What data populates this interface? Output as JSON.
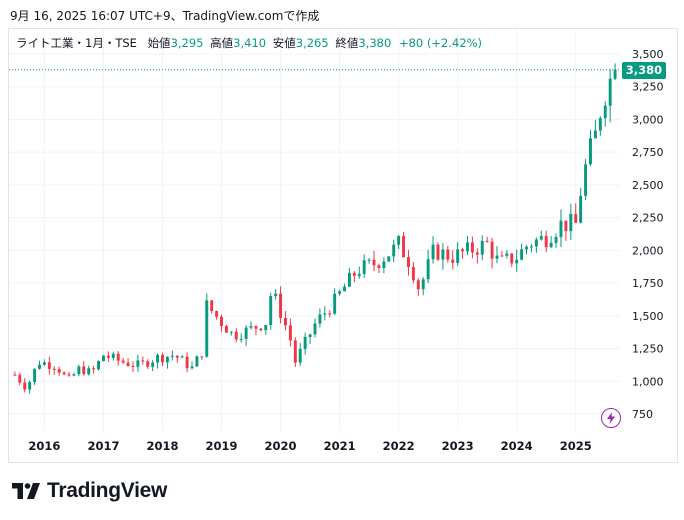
{
  "header": {
    "date_text": "9月 16, 2025 16:07 UTC+9、TradingView.comで作成"
  },
  "legend": {
    "symbol": "ライト工業・1月・TSE",
    "open_label": "始値",
    "open_value": "3,295",
    "high_label": "高値",
    "high_value": "3,410",
    "low_label": "安値",
    "low_value": "3,265",
    "close_label": "終値",
    "close_value": "3,380",
    "change": "+80 (+2.42%)"
  },
  "last_price_label": "3,380",
  "brand": {
    "name": "TradingView"
  },
  "colors": {
    "up": "#089981",
    "down": "#f23645",
    "grid": "#f0f3fa",
    "accent": "#9c27b0"
  },
  "icons": {
    "logo": "tradingview-logo-icon",
    "flash": "lightning-icon"
  },
  "chart_data": {
    "type": "candlestick",
    "title": "ライト工業・1月・TSE",
    "interval": "1M",
    "ylim": [
      600,
      3550
    ],
    "y_ticks": [
      750,
      1000,
      1250,
      1500,
      1750,
      2000,
      2250,
      2500,
      2750,
      3000,
      3250,
      3500
    ],
    "y_tick_labels": [
      "750",
      "1,000",
      "1,250",
      "1,500",
      "1,750",
      "2,000",
      "2,250",
      "2,500",
      "2,750",
      "3,000",
      "3,250",
      "3,500"
    ],
    "x_labels": [
      "2016",
      "2017",
      "2018",
      "2019",
      "2020",
      "2021",
      "2022",
      "2023",
      "2024",
      "2025"
    ],
    "x_range": [
      2015.4,
      2025.75
    ],
    "last_close": 3380,
    "anchors": [
      [
        2015.5,
        1050
      ],
      [
        2015.7,
        950
      ],
      [
        2015.9,
        1150
      ],
      [
        2016.2,
        1120
      ],
      [
        2016.4,
        1000
      ],
      [
        2016.6,
        1100
      ],
      [
        2016.8,
        1060
      ],
      [
        2017.0,
        1200
      ],
      [
        2017.3,
        1150
      ],
      [
        2017.6,
        1120
      ],
      [
        2017.9,
        1180
      ],
      [
        2018.2,
        1200
      ],
      [
        2018.5,
        1100
      ],
      [
        2018.7,
        1250
      ],
      [
        2018.75,
        1580
      ],
      [
        2019.0,
        1450
      ],
      [
        2019.2,
        1350
      ],
      [
        2019.5,
        1400
      ],
      [
        2019.75,
        1450
      ],
      [
        2019.85,
        1700
      ],
      [
        2020.15,
        1350
      ],
      [
        2020.25,
        1150
      ],
      [
        2020.6,
        1450
      ],
      [
        2020.9,
        1600
      ],
      [
        2021.05,
        1700
      ],
      [
        2021.3,
        1850
      ],
      [
        2021.6,
        1900
      ],
      [
        2021.9,
        2000
      ],
      [
        2022.0,
        2050
      ],
      [
        2022.2,
        1900
      ],
      [
        2022.35,
        1700
      ],
      [
        2022.6,
        2000
      ],
      [
        2022.9,
        1950
      ],
      [
        2023.2,
        2000
      ],
      [
        2023.5,
        2050
      ],
      [
        2023.7,
        1900
      ],
      [
        2024.0,
        1950
      ],
      [
        2024.2,
        2050
      ],
      [
        2024.5,
        2100
      ],
      [
        2024.75,
        2200
      ],
      [
        2025.0,
        2200
      ],
      [
        2025.1,
        2500
      ],
      [
        2025.2,
        2700
      ],
      [
        2025.35,
        2900
      ],
      [
        2025.45,
        3150
      ],
      [
        2025.58,
        3300
      ],
      [
        2025.66,
        3380
      ]
    ]
  }
}
